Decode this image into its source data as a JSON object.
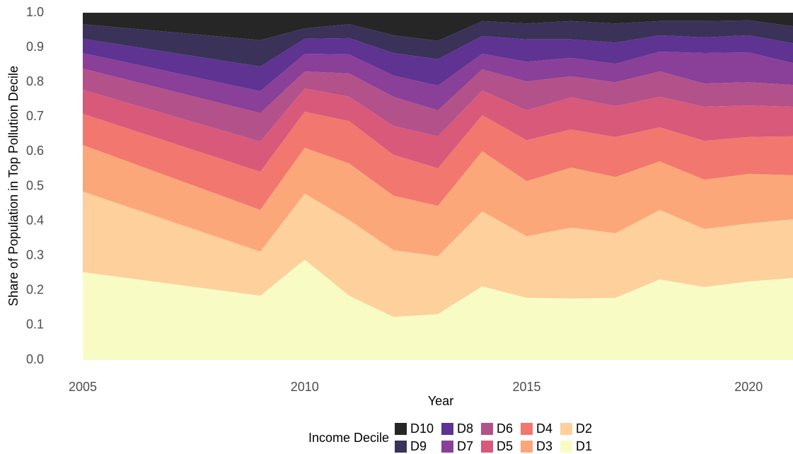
{
  "chart_data": {
    "type": "stacked_area",
    "x_label": "Year",
    "y_label": "Share of Population in Top Pollution Decile",
    "legend_title": "Income Decile",
    "x": [
      2005,
      2009,
      2010,
      2011,
      2012,
      2013,
      2014,
      2015,
      2016,
      2017,
      2018,
      2019,
      2020,
      2021
    ],
    "xlim": [
      2005,
      2021
    ],
    "xticks": [
      2005,
      2010,
      2015,
      2020
    ],
    "ylim": [
      0,
      1
    ],
    "yticks": [
      {
        "value": 0,
        "label": "0.0"
      },
      0.1,
      0.2,
      0.3,
      0.4,
      0.5,
      0.6,
      0.7,
      0.8,
      0.9,
      {
        "value": 1,
        "label": "1.0"
      }
    ],
    "grid": false,
    "legend": "bottom",
    "series": [
      {
        "name": "D1",
        "color": "#f8fcc4",
        "values": [
          0.253,
          0.185,
          0.289,
          0.185,
          0.124,
          0.132,
          0.212,
          0.179,
          0.177,
          0.179,
          0.232,
          0.21,
          0.226,
          0.236
        ]
      },
      {
        "name": "D2",
        "color": "#fdd09c",
        "values": [
          0.232,
          0.127,
          0.19,
          0.218,
          0.192,
          0.167,
          0.216,
          0.177,
          0.204,
          0.186,
          0.2,
          0.167,
          0.167,
          0.169
        ]
      },
      {
        "name": "D3",
        "color": "#fca77a",
        "values": [
          0.134,
          0.12,
          0.132,
          0.163,
          0.157,
          0.145,
          0.173,
          0.159,
          0.173,
          0.162,
          0.14,
          0.142,
          0.143,
          0.127
        ]
      },
      {
        "name": "D4",
        "color": "#f2776f",
        "values": [
          0.09,
          0.11,
          0.104,
          0.122,
          0.118,
          0.108,
          0.104,
          0.118,
          0.11,
          0.115,
          0.098,
          0.112,
          0.106,
          0.112
        ]
      },
      {
        "name": "D5",
        "color": "#d8597a",
        "values": [
          0.069,
          0.087,
          0.067,
          0.07,
          0.083,
          0.092,
          0.071,
          0.086,
          0.092,
          0.089,
          0.088,
          0.098,
          0.091,
          0.085
        ]
      },
      {
        "name": "D6",
        "color": "#b3518a",
        "values": [
          0.061,
          0.082,
          0.049,
          0.067,
          0.084,
          0.075,
          0.061,
          0.083,
          0.061,
          0.069,
          0.073,
          0.067,
          0.067,
          0.063
        ]
      },
      {
        "name": "D7",
        "color": "#8a3f98",
        "values": [
          0.045,
          0.063,
          0.051,
          0.055,
          0.061,
          0.071,
          0.045,
          0.057,
          0.053,
          0.053,
          0.057,
          0.088,
          0.086,
          0.063
        ]
      },
      {
        "name": "D8",
        "color": "#5e3391",
        "values": [
          0.041,
          0.071,
          0.043,
          0.047,
          0.065,
          0.076,
          0.051,
          0.064,
          0.053,
          0.061,
          0.047,
          0.045,
          0.049,
          0.057
        ]
      },
      {
        "name": "D9",
        "color": "#3a3258",
        "values": [
          0.042,
          0.076,
          0.03,
          0.04,
          0.051,
          0.053,
          0.043,
          0.046,
          0.053,
          0.055,
          0.041,
          0.047,
          0.043,
          0.049
        ]
      },
      {
        "name": "D10",
        "color": "#262626",
        "values": [
          0.033,
          0.079,
          0.045,
          0.033,
          0.065,
          0.081,
          0.024,
          0.031,
          0.024,
          0.031,
          0.024,
          0.024,
          0.022,
          0.039
        ]
      }
    ]
  }
}
